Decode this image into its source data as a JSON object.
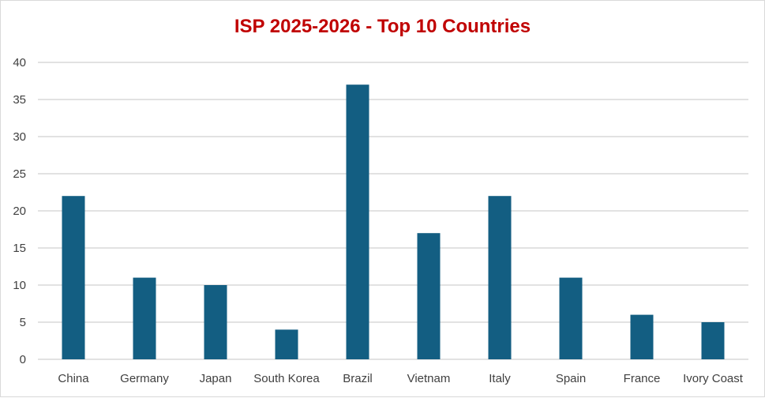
{
  "chart_data": {
    "type": "bar",
    "title": "ISP 2025-2026 - Top 10 Countries",
    "xlabel": "",
    "ylabel": "",
    "categories": [
      "China",
      "Germany",
      "Japan",
      "South Korea",
      "Brazil",
      "Vietnam",
      "Italy",
      "Spain",
      "France",
      "Ivory Coast"
    ],
    "values": [
      22,
      11,
      10,
      4,
      37,
      17,
      22,
      11,
      6,
      5
    ],
    "ylim": [
      0,
      40
    ],
    "yticks": [
      "0",
      "5",
      "10",
      "15",
      "20",
      "25",
      "30",
      "35",
      "40"
    ],
    "grid": true,
    "legend": "none"
  },
  "colors": {
    "bar": "#135E82",
    "title": "#C00000",
    "grid": "#d9d9d9",
    "tick_text": "#404040"
  }
}
